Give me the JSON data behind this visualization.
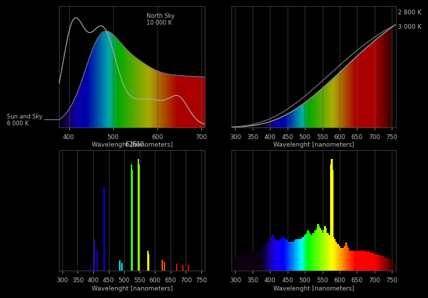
{
  "fig_bg": "#000000",
  "ax_bg": "#000000",
  "text_color": "#bbbbbb",
  "grid_color": "#555555",
  "xlabel": "Wavelenght [nanometers]",
  "line_color1": "#aaaaaa",
  "line_color2": "#777777",
  "top_left": {
    "xlim": [
      378,
      708
    ],
    "ylim": [
      0,
      1.08
    ],
    "xticks": [
      400,
      500,
      600,
      700
    ],
    "label_sun": "Sun and Sky\n6 000 K",
    "label_north": "North Sky\n10 000 K"
  },
  "top_right": {
    "xlim": [
      290,
      762
    ],
    "ylim": [
      0,
      1.08
    ],
    "xticks": [
      300,
      350,
      400,
      450,
      500,
      550,
      600,
      650,
      700,
      750
    ],
    "label_2800": "2 800 K",
    "label_3000": "3 000 K"
  },
  "bot_left": {
    "xlim": [
      290,
      762
    ],
    "ylim": [
      0,
      1.08
    ],
    "xticks": [
      300,
      350,
      400,
      450,
      500,
      550,
      600,
      650,
      700,
      750
    ],
    "label_625": "625",
    "label_640": "640",
    "spikes": [
      [
        310,
        0.04
      ],
      [
        320,
        0.04
      ],
      [
        330,
        0.04
      ],
      [
        340,
        0.04
      ],
      [
        350,
        0.04
      ],
      [
        360,
        0.04
      ],
      [
        370,
        0.05
      ],
      [
        380,
        0.05
      ],
      [
        390,
        0.05
      ],
      [
        405,
        0.28
      ],
      [
        413,
        0.18
      ],
      [
        436,
        0.75
      ],
      [
        487,
        0.09
      ],
      [
        492,
        0.07
      ],
      [
        524,
        0.95
      ],
      [
        527,
        0.9
      ],
      [
        546,
        1.0
      ],
      [
        549,
        0.95
      ],
      [
        578,
        0.18
      ],
      [
        580,
        0.15
      ],
      [
        623,
        0.1
      ],
      [
        631,
        0.08
      ],
      [
        671,
        0.06
      ],
      [
        690,
        0.05
      ],
      [
        707,
        0.05
      ]
    ]
  },
  "bot_right": {
    "xlim": [
      290,
      762
    ],
    "ylim": [
      0,
      1.08
    ],
    "xticks": [
      300,
      350,
      400,
      450,
      500,
      550,
      600,
      650,
      700,
      750
    ],
    "continuum": true,
    "spikes": [
      [
        302,
        0.12
      ],
      [
        310,
        0.13
      ],
      [
        315,
        0.13
      ],
      [
        320,
        0.14
      ],
      [
        325,
        0.14
      ],
      [
        330,
        0.15
      ],
      [
        335,
        0.15
      ],
      [
        340,
        0.16
      ],
      [
        345,
        0.16
      ],
      [
        350,
        0.17
      ],
      [
        355,
        0.17
      ],
      [
        360,
        0.18
      ],
      [
        365,
        0.18
      ],
      [
        370,
        0.19
      ],
      [
        375,
        0.2
      ],
      [
        380,
        0.22
      ],
      [
        385,
        0.23
      ],
      [
        390,
        0.24
      ],
      [
        395,
        0.25
      ],
      [
        400,
        0.28
      ],
      [
        405,
        0.3
      ],
      [
        408,
        0.32
      ],
      [
        410,
        0.3
      ],
      [
        415,
        0.28
      ],
      [
        420,
        0.27
      ],
      [
        425,
        0.27
      ],
      [
        430,
        0.28
      ],
      [
        435,
        0.3
      ],
      [
        440,
        0.3
      ],
      [
        445,
        0.28
      ],
      [
        450,
        0.27
      ],
      [
        455,
        0.26
      ],
      [
        460,
        0.26
      ],
      [
        465,
        0.26
      ],
      [
        470,
        0.27
      ],
      [
        475,
        0.28
      ],
      [
        480,
        0.28
      ],
      [
        485,
        0.28
      ],
      [
        490,
        0.29
      ],
      [
        495,
        0.3
      ],
      [
        500,
        0.32
      ],
      [
        505,
        0.33
      ],
      [
        508,
        0.36
      ],
      [
        510,
        0.35
      ],
      [
        515,
        0.33
      ],
      [
        520,
        0.32
      ],
      [
        525,
        0.34
      ],
      [
        530,
        0.36
      ],
      [
        535,
        0.38
      ],
      [
        538,
        0.42
      ],
      [
        540,
        0.4
      ],
      [
        545,
        0.38
      ],
      [
        548,
        0.36
      ],
      [
        550,
        0.34
      ],
      [
        555,
        0.36
      ],
      [
        558,
        0.4
      ],
      [
        560,
        0.38
      ],
      [
        565,
        0.34
      ],
      [
        570,
        0.32
      ],
      [
        575,
        0.95
      ],
      [
        577,
        1.0
      ],
      [
        579,
        0.9
      ],
      [
        582,
        0.3
      ],
      [
        585,
        0.28
      ],
      [
        590,
        0.26
      ],
      [
        595,
        0.24
      ],
      [
        600,
        0.22
      ],
      [
        605,
        0.2
      ],
      [
        610,
        0.2
      ],
      [
        615,
        0.22
      ],
      [
        618,
        0.25
      ],
      [
        620,
        0.22
      ],
      [
        625,
        0.2
      ],
      [
        628,
        0.18
      ],
      [
        630,
        0.18
      ],
      [
        635,
        0.18
      ],
      [
        640,
        0.18
      ],
      [
        645,
        0.18
      ],
      [
        650,
        0.18
      ],
      [
        655,
        0.18
      ],
      [
        660,
        0.18
      ],
      [
        665,
        0.18
      ],
      [
        670,
        0.18
      ],
      [
        675,
        0.17
      ],
      [
        680,
        0.17
      ],
      [
        685,
        0.17
      ],
      [
        690,
        0.16
      ],
      [
        695,
        0.16
      ],
      [
        700,
        0.15
      ],
      [
        705,
        0.15
      ],
      [
        710,
        0.14
      ],
      [
        715,
        0.14
      ],
      [
        720,
        0.13
      ],
      [
        725,
        0.13
      ],
      [
        730,
        0.12
      ],
      [
        735,
        0.11
      ],
      [
        740,
        0.11
      ],
      [
        745,
        0.1
      ],
      [
        750,
        0.1
      ]
    ]
  }
}
